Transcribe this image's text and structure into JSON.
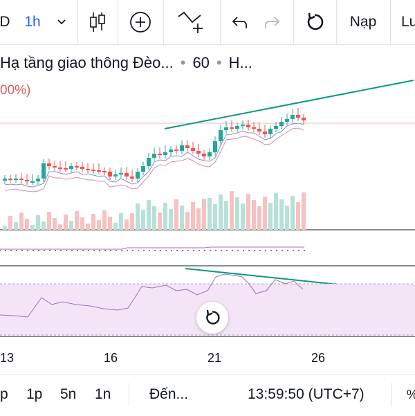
{
  "toolbar": {
    "symbol_partial": "D",
    "interval": "1h",
    "chevron_glyph": "⌄",
    "publish_label": "Nạp",
    "save_partial": "Lư"
  },
  "legend": {
    "name": "Hạ tầng giao thông Đèo...",
    "interval": "60",
    "exchange": "H...",
    "separator": "•",
    "change_partial": "00%)"
  },
  "colors": {
    "up": "#26a69a",
    "down": "#ef5350",
    "accent": "#2962ff",
    "trendline": "#089981",
    "rsi_band": "#f3e5f5",
    "rsi_line": "#9c6fb6"
  },
  "chart_data": {
    "type": "candlestick",
    "x_tick_labels": [
      "13",
      "16",
      "21",
      "26"
    ],
    "note_indicators": [
      "moving averages",
      "volume",
      "RSI"
    ]
  },
  "timeframes": [
    "p",
    "1p",
    "5n",
    "1n"
  ],
  "goto_label": "Đến...",
  "clock": "13:59:50 (UTC+7)",
  "icons": {
    "candles": "candlestick-icon",
    "indicators": "add-indicator-icon",
    "drawing": "trend-line-icon",
    "undo": "undo-icon",
    "redo": "redo-icon",
    "replay": "replay-icon"
  }
}
